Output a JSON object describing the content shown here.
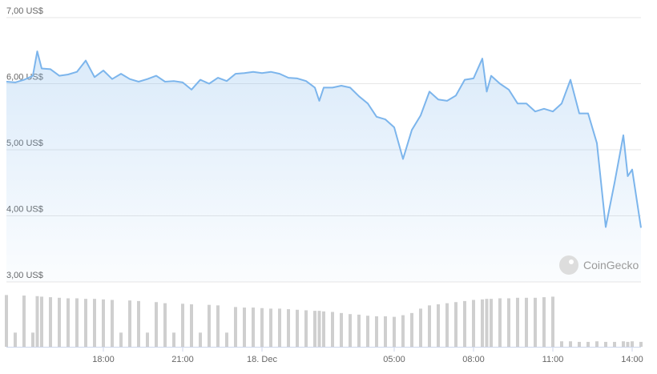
{
  "chart_data": {
    "type": "line",
    "x": [
      "12-17 14:20",
      "12-17 14:40",
      "12-17 15:00",
      "12-17 15:20",
      "12-17 15:30",
      "12-17 15:40",
      "12-17 16:00",
      "12-17 16:20",
      "12-17 16:40",
      "12-17 17:00",
      "12-17 17:20",
      "12-17 17:40",
      "12-17 18:00",
      "12-17 18:20",
      "12-17 18:40",
      "12-17 19:00",
      "12-17 19:20",
      "12-17 19:40",
      "12-17 20:00",
      "12-17 20:20",
      "12-17 20:40",
      "12-17 21:00",
      "12-17 21:20",
      "12-17 21:40",
      "12-17 22:00",
      "12-17 22:20",
      "12-17 22:40",
      "12-17 23:00",
      "12-17 23:20",
      "12-17 23:40",
      "12-18 00:00",
      "12-18 00:20",
      "12-18 00:40",
      "12-18 01:00",
      "12-18 01:20",
      "12-18 01:40",
      "12-18 02:00",
      "12-18 02:10",
      "12-18 02:20",
      "12-18 02:40",
      "12-18 03:00",
      "12-18 03:20",
      "12-18 03:40",
      "12-18 04:00",
      "12-18 04:20",
      "12-18 04:40",
      "12-18 05:00",
      "12-18 05:20",
      "12-18 05:40",
      "12-18 06:00",
      "12-18 06:20",
      "12-18 06:40",
      "12-18 07:00",
      "12-18 07:20",
      "12-18 07:40",
      "12-18 08:00",
      "12-18 08:20",
      "12-18 08:30",
      "12-18 08:40",
      "12-18 09:00",
      "12-18 09:20",
      "12-18 09:40",
      "12-18 10:00",
      "12-18 10:20",
      "12-18 10:40",
      "12-18 11:00",
      "12-18 11:20",
      "12-18 11:40",
      "12-18 12:00",
      "12-18 12:20",
      "12-18 12:40",
      "12-18 13:00",
      "12-18 13:20",
      "12-18 13:40",
      "12-18 13:50",
      "12-18 14:00",
      "12-18 14:20"
    ],
    "series": [
      {
        "color": "#7cb5ec",
        "values": [
          6.03,
          6.02,
          6.06,
          6.12,
          6.49,
          6.23,
          6.22,
          6.12,
          6.14,
          6.18,
          6.35,
          6.1,
          6.2,
          6.07,
          6.15,
          6.07,
          6.03,
          6.07,
          6.12,
          6.03,
          6.04,
          6.02,
          5.91,
          6.06,
          6.0,
          6.09,
          6.04,
          6.15,
          6.16,
          6.18,
          6.16,
          6.18,
          6.15,
          6.09,
          6.08,
          6.04,
          5.94,
          5.74,
          5.94,
          5.94,
          5.97,
          5.94,
          5.81,
          5.7,
          5.5,
          5.46,
          5.34,
          4.86,
          5.3,
          5.52,
          5.88,
          5.76,
          5.74,
          5.82,
          6.06,
          6.08,
          6.38,
          5.88,
          6.12,
          6.0,
          5.91,
          5.7,
          5.7,
          5.58,
          5.62,
          5.58,
          5.7,
          6.06,
          5.55,
          5.55,
          5.1,
          3.83,
          4.5,
          5.22,
          4.6,
          4.7,
          3.82
        ]
      },
      {
        "type": "bar",
        "axis": "y2",
        "color": "#cfcfcf",
        "values": [
          95,
          26,
          94,
          26,
          93,
          92,
          91,
          90,
          89,
          89,
          88,
          88,
          87,
          86,
          26,
          85,
          84,
          26,
          82,
          80,
          26,
          79,
          78,
          26,
          77,
          76,
          26,
          73,
          72,
          72,
          71,
          70,
          70,
          69,
          68,
          67,
          66,
          66,
          65,
          64,
          62,
          60,
          59,
          57,
          56,
          56,
          55,
          58,
          62,
          70,
          76,
          78,
          80,
          82,
          84,
          86,
          87,
          88,
          88,
          89,
          89,
          90,
          90,
          90,
          91,
          92,
          10,
          10,
          9,
          9,
          10,
          9,
          9,
          10,
          9,
          10,
          9
        ]
      }
    ],
    "xlim": [
      "12-17 14:20",
      "12-18 14:20"
    ],
    "xticks": [
      {
        "value": "12-17 18:00",
        "label": "18:00"
      },
      {
        "value": "12-17 21:00",
        "label": "21:00"
      },
      {
        "value": "12-18 00:00",
        "label": "18. Dec"
      },
      {
        "value": "12-18 05:00",
        "label": "05:00"
      },
      {
        "value": "12-18 08:00",
        "label": "08:00"
      },
      {
        "value": "12-18 11:00",
        "label": "11:00"
      },
      {
        "value": "12-18 14:00",
        "label": "14:00"
      }
    ],
    "ylim": [
      3,
      7
    ],
    "yticks": [
      {
        "value": 3,
        "label": "3,00 US$"
      },
      {
        "value": 4,
        "label": "4,00 US$"
      },
      {
        "value": 5,
        "label": "5,00 US$"
      },
      {
        "value": 6,
        "label": "6,00 US$"
      },
      {
        "value": 7,
        "label": "7,00 US$"
      }
    ],
    "y2lim": [
      0,
      100
    ],
    "grid": true,
    "watermark": "CoinGecko"
  }
}
